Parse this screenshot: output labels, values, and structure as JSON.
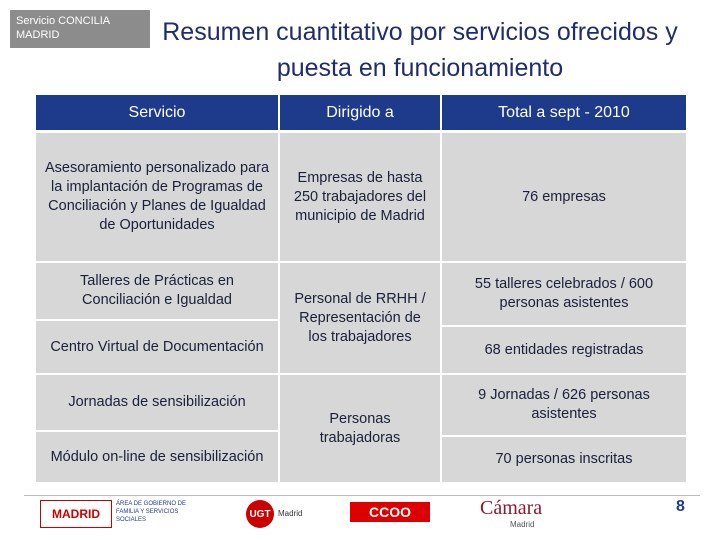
{
  "header": {
    "badge": "Servicio CONCILIA MADRID",
    "title": "Resumen cuantitativo por servicios ofrecidos y puesta en funcionamiento"
  },
  "table": {
    "columns": [
      "Servicio",
      "Dirigido a",
      "Total a sept - 2010"
    ],
    "cells": [
      "Asesoramiento personalizado para la implantación de Programas de Conciliación y Planes de Igualdad de Oportunidades",
      "Empresas de hasta 250 trabajadores del municipio de Madrid",
      "76 empresas",
      "Talleres de Prácticas en Conciliación e Igualdad",
      "Centro Virtual de Documentación",
      "Personal de RRHH / Representación de los trabajadores",
      "55 talleres celebrados / 600 personas asistentes",
      "68 entidades registradas",
      "Jornadas de sensibilización",
      "Módulo on-line de sensibilización",
      "Personas trabajadoras",
      "9 Jornadas / 626 personas asistentes",
      "70 personas inscritas"
    ]
  },
  "footer": {
    "madrid": "MADRID",
    "area": "ÁREA DE GOBIERNO DE FAMILIA Y SERVICIOS SOCIALES",
    "ugt": "UGT",
    "ugt_city": "Madrid",
    "ccoo": "CCOO",
    "camara": "Cámara",
    "camara_city": "Madrid",
    "page_number": "8"
  }
}
